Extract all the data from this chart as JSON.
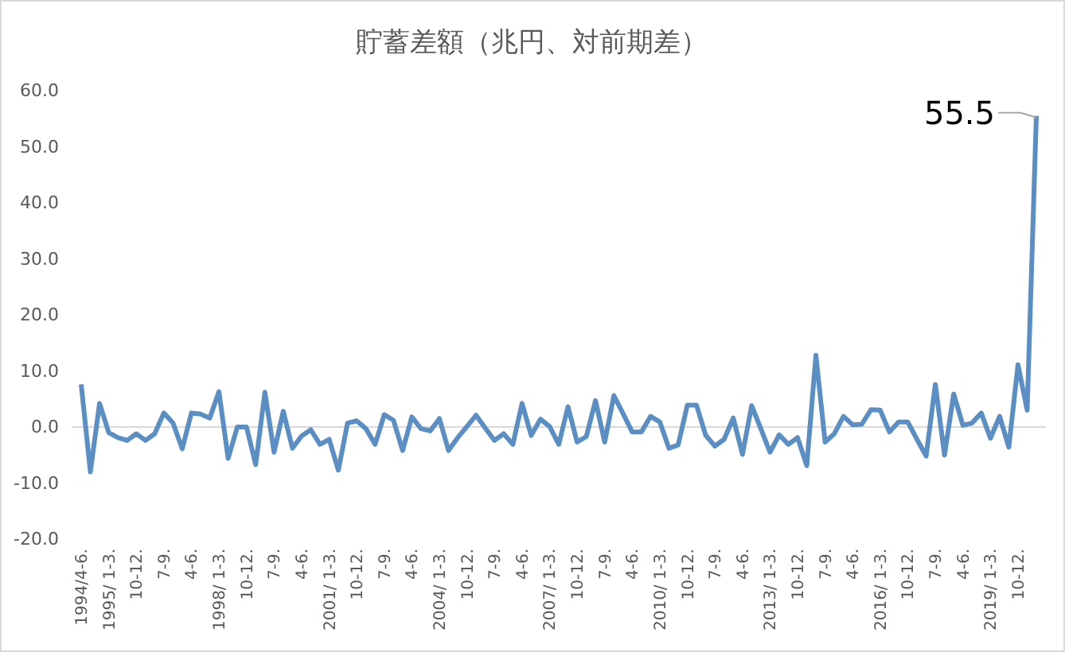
{
  "chart_data": {
    "type": "line",
    "title": "貯蓄差額（兆円、対前期差）",
    "categories": [
      "1994/4-6.",
      null,
      null,
      "1995/ 1-3.",
      null,
      null,
      "10-12.",
      null,
      null,
      "7-9.",
      null,
      null,
      "4-6.",
      null,
      null,
      "1998/ 1-3.",
      null,
      null,
      "10-12.",
      null,
      null,
      "7-9.",
      null,
      null,
      "4-6.",
      null,
      null,
      "2001/ 1-3.",
      null,
      null,
      "10-12.",
      null,
      null,
      "7-9.",
      null,
      null,
      "4-6.",
      null,
      null,
      "2004/ 1-3.",
      null,
      null,
      "10-12.",
      null,
      null,
      "7-9.",
      null,
      null,
      "4-6.",
      null,
      null,
      "2007/ 1-3.",
      null,
      null,
      "10-12.",
      null,
      null,
      "7-9.",
      null,
      null,
      "4-6.",
      null,
      null,
      "2010/ 1-3.",
      null,
      null,
      "10-12.",
      null,
      null,
      "7-9.",
      null,
      null,
      "4-6.",
      null,
      null,
      "2013/ 1-3.",
      null,
      null,
      "10-12.",
      null,
      null,
      "7-9.",
      null,
      null,
      "4-6.",
      null,
      null,
      "2016/ 1-3.",
      null,
      null,
      "10-12.",
      null,
      null,
      "7-9.",
      null,
      null,
      "4-6.",
      null,
      null,
      "2019/ 1-3.",
      null,
      null,
      "10-12.",
      null,
      null
    ],
    "series": [
      {
        "color": "#5b8fc4",
        "values": [
          7.6,
          -8.0,
          4.2,
          -1.0,
          -1.9,
          -2.4,
          -1.2,
          -2.4,
          -1.2,
          2.5,
          0.7,
          -3.9,
          2.5,
          2.3,
          1.6,
          6.3,
          -5.6,
          0,
          0,
          -6.7,
          6.2,
          -4.5,
          2.8,
          -3.8,
          -1.6,
          -0.5,
          -3.1,
          -2.2,
          -7.7,
          0.7,
          1.1,
          -0.3,
          -3.1,
          2.2,
          1.2,
          -4.2,
          1.8,
          -0.3,
          -0.7,
          1.5,
          -4.2,
          -1.9,
          0.1,
          2.1,
          -0.2,
          -2.4,
          -1.2,
          -3.1,
          4.2,
          -1.5,
          1.4,
          0.1,
          -3.1,
          3.6,
          -2.7,
          -1.7,
          4.7,
          -2.7,
          5.6,
          2.4,
          -0.9,
          -0.9,
          1.9,
          0.9,
          -3.8,
          -3.2,
          3.9,
          3.9,
          -1.5,
          -3.4,
          -2.2,
          1.6,
          -4.9,
          3.8,
          -0.3,
          -4.5,
          -1.4,
          -3.1,
          -1.9,
          -6.9,
          12.8,
          -2.7,
          -1.2,
          1.9,
          0.4,
          0.5,
          3.1,
          3.0,
          -0.9,
          0.9,
          0.9,
          -2.2,
          -5.2,
          7.6,
          -5.0,
          5.9,
          0.3,
          0.7,
          2.5,
          -2.0,
          1.9,
          -3.6,
          11.1,
          3.0,
          55.5
        ],
        "value_labels": [
          null,
          null,
          null,
          null,
          null,
          null,
          null,
          null,
          null,
          null,
          null,
          null,
          null,
          null,
          null,
          null,
          null,
          null,
          null,
          null,
          null,
          null,
          null,
          null,
          null,
          null,
          null,
          null,
          null,
          null,
          null,
          null,
          null,
          null,
          null,
          null,
          null,
          null,
          null,
          null,
          null,
          null,
          null,
          null,
          null,
          null,
          null,
          null,
          null,
          null,
          null,
          null,
          null,
          null,
          null,
          null,
          null,
          null,
          null,
          null,
          null,
          null,
          null,
          null,
          null,
          null,
          null,
          null,
          null,
          null,
          null,
          null,
          null,
          null,
          null,
          null,
          null,
          null,
          null,
          null,
          null,
          null,
          null,
          null,
          null,
          null,
          null,
          null,
          null,
          null,
          null,
          null,
          null,
          null,
          null,
          null,
          null,
          null,
          null,
          null,
          null,
          null,
          null,
          null,
          "55.5"
        ]
      }
    ],
    "ylim": [
      -20,
      60
    ],
    "yticks": [
      {
        "value": -20,
        "label": "-20.0"
      },
      {
        "value": -10,
        "label": "-10.0"
      },
      {
        "value": 0,
        "label": "0.0"
      },
      {
        "value": 10,
        "label": "10.0"
      },
      {
        "value": 20,
        "label": "20.0"
      },
      {
        "value": 30,
        "label": "30.0"
      },
      {
        "value": 40,
        "label": "40.0"
      },
      {
        "value": 50,
        "label": "50.0"
      },
      {
        "value": 60,
        "label": "60.0"
      }
    ],
    "marker": "none",
    "line_style": "solid"
  }
}
